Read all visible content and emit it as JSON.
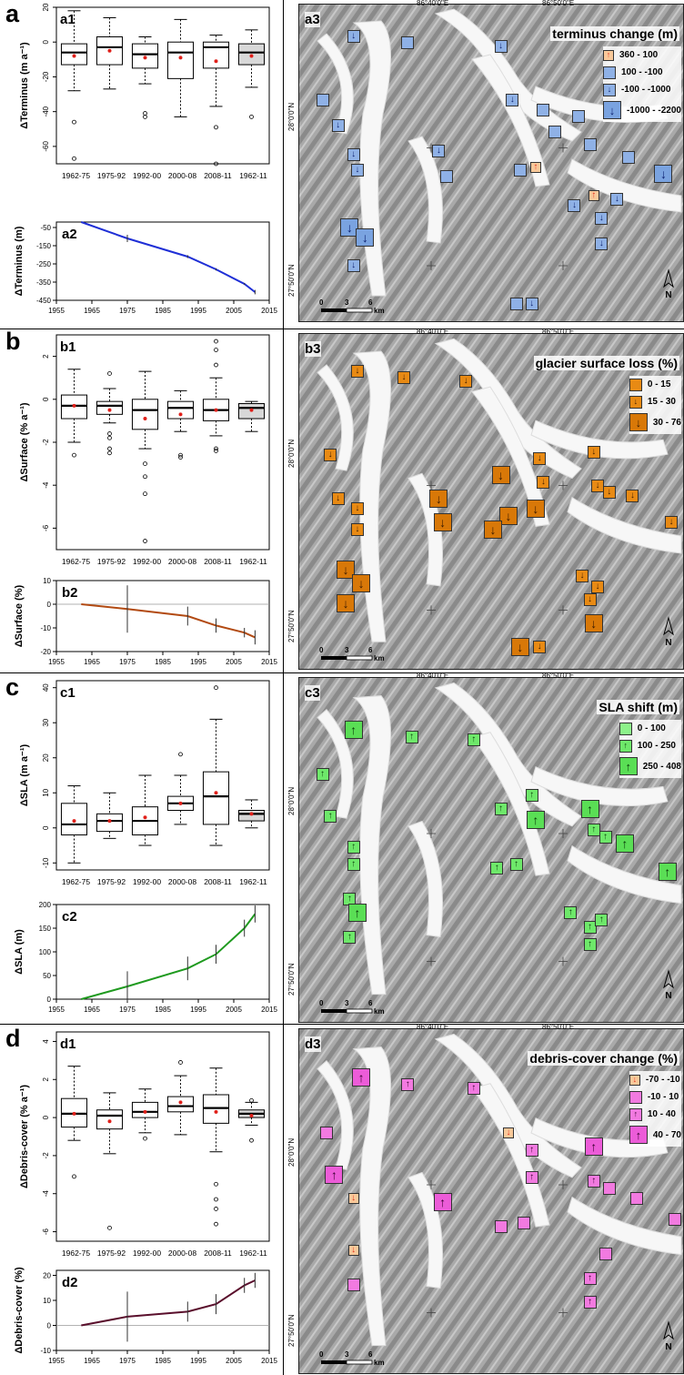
{
  "panels": [
    {
      "letter": "a",
      "box": {
        "label": "a1",
        "ylabel": "ΔTerminus (m a⁻¹)",
        "yticks": [
          20,
          0,
          -20,
          -40,
          -60
        ],
        "ylim": [
          -70,
          20
        ],
        "periods": [
          "1962-75",
          "1975-92",
          "1992-00",
          "2000-08",
          "2008-11",
          "1962-11"
        ],
        "stats": [
          {
            "min": -28,
            "q1": -13,
            "median": -6,
            "q3": -1,
            "max": 18,
            "mean": -8,
            "outliers": [
              -46,
              -67
            ]
          },
          {
            "min": -27,
            "q1": -13,
            "median": -3,
            "q3": 3,
            "max": 14,
            "mean": -5,
            "outliers": []
          },
          {
            "min": -24,
            "q1": -15,
            "median": -7,
            "q3": -1,
            "max": 3,
            "mean": -9,
            "outliers": [
              -41,
              -43
            ]
          },
          {
            "min": -43,
            "q1": -21,
            "median": -6,
            "q3": 0,
            "max": 13,
            "mean": -9,
            "outliers": []
          },
          {
            "min": -37,
            "q1": -15,
            "median": -3,
            "q3": 0,
            "max": 4,
            "mean": -11,
            "outliers": [
              -49,
              -70
            ]
          },
          {
            "min": -26,
            "q1": -13,
            "median": -6,
            "q3": -1,
            "max": 7,
            "mean": -8,
            "outliers": [
              -43
            ]
          }
        ]
      },
      "line": {
        "label": "a2",
        "ylabel": "ΔTerminus (m)",
        "yticks": [
          -50,
          -150,
          -250,
          -350,
          -450
        ],
        "ylim": [
          -450,
          -20
        ],
        "xticks": [
          1955,
          1965,
          1975,
          1985,
          1995,
          2005,
          2015
        ],
        "xlim": [
          1955,
          2015
        ],
        "color": "#1f2fd6",
        "x": [
          1962,
          1975,
          1992,
          2000,
          2008,
          2011
        ],
        "y": [
          -20,
          -110,
          -210,
          -280,
          -360,
          -405
        ],
        "err": [
          0,
          20,
          8,
          6,
          5,
          12
        ]
      },
      "map": {
        "label": "a3",
        "title": "terminus change (m)",
        "coord_top_left": "86°40'0\"E",
        "coord_top_right": "86°50'0\"E",
        "coord_left_top": "28°0'0\"N",
        "coord_left_bottom": "27°50'0\"N",
        "scale": [
          "0",
          "3",
          "6"
        ],
        "scale_unit": "km",
        "north": "N",
        "legend": [
          {
            "label": "360 - 100",
            "fill": "#f9c99a",
            "arrow": "↑",
            "arrow_color": "#e0301e",
            "size": 12
          },
          {
            "label": "100 - -100",
            "fill": "#8fb1e6",
            "arrow": "",
            "arrow_color": "#000",
            "size": 14
          },
          {
            "label": "-100 - -1000",
            "fill": "#8fb1e6",
            "arrow": "↓",
            "arrow_color": "#0a1f6e",
            "size": 14
          },
          {
            "label": "-1000 - -2200",
            "fill": "#7aa3e0",
            "arrow": "↓",
            "arrow_color": "#0a1f6e",
            "size": 20
          }
        ]
      }
    },
    {
      "letter": "b",
      "box": {
        "label": "b1",
        "ylabel": "ΔSurface (% a⁻¹)",
        "yticks": [
          2,
          0,
          -2,
          -4,
          -6
        ],
        "ylim": [
          -7,
          3
        ],
        "periods": [
          "1962-75",
          "1975-92",
          "1992-00",
          "2000-08",
          "2008-11",
          "1962-11"
        ],
        "stats": [
          {
            "min": -2.0,
            "q1": -0.9,
            "median": -0.3,
            "q3": 0.2,
            "max": 1.4,
            "mean": -0.3,
            "outliers": [
              -2.6
            ]
          },
          {
            "min": -1.1,
            "q1": -0.7,
            "median": -0.3,
            "q3": -0.1,
            "max": 0.5,
            "mean": -0.5,
            "outliers": [
              1.2,
              -1.6,
              -1.8,
              -2.3,
              -2.5
            ]
          },
          {
            "min": -2.3,
            "q1": -1.4,
            "median": -0.5,
            "q3": 0,
            "max": 1.3,
            "mean": -0.9,
            "outliers": [
              -3.0,
              -3.6,
              -4.4,
              -6.6
            ]
          },
          {
            "min": -1.5,
            "q1": -0.9,
            "median": -0.4,
            "q3": -0.1,
            "max": 0.4,
            "mean": -0.7,
            "outliers": [
              -2.6,
              -2.7
            ]
          },
          {
            "min": -1.7,
            "q1": -1.0,
            "median": -0.5,
            "q3": 0,
            "max": 1.0,
            "mean": -0.5,
            "outliers": [
              2.7,
              2.3,
              1.6,
              -2.3,
              -2.4
            ]
          },
          {
            "min": -1.5,
            "q1": -0.9,
            "median": -0.4,
            "q3": -0.2,
            "max": -0.1,
            "mean": -0.5,
            "outliers": []
          }
        ]
      },
      "line": {
        "label": "b2",
        "ylabel": "ΔSurface (%)",
        "yticks": [
          10,
          0,
          -10,
          -20
        ],
        "ylim": [
          -20,
          10
        ],
        "xticks": [
          1955,
          1965,
          1975,
          1985,
          1995,
          2005,
          2015
        ],
        "xlim": [
          1955,
          2015
        ],
        "color": "#b24a12",
        "x": [
          1962,
          1975,
          1992,
          2000,
          2008,
          2011
        ],
        "y": [
          0,
          -2,
          -5,
          -9,
          -12,
          -14
        ],
        "err": [
          0,
          10,
          4,
          3,
          2,
          3
        ]
      },
      "map": {
        "label": "b3",
        "title": "glacier surface loss (%)",
        "coord_top_left": "86°40'0\"E",
        "coord_top_right": "86°50'0\"E",
        "coord_left_top": "28°0'0\"N",
        "coord_left_bottom": "27°50'0\"N",
        "scale": [
          "0",
          "3",
          "6"
        ],
        "scale_unit": "km",
        "north": "N",
        "legend": [
          {
            "label": "0 - 15",
            "fill": "#e88a14",
            "arrow": "",
            "arrow_color": "#000",
            "size": 14
          },
          {
            "label": "15 - 30",
            "fill": "#e88a14",
            "arrow": "↓",
            "arrow_color": "#3a1a00",
            "size": 14
          },
          {
            "label": "30 - 76",
            "fill": "#d87808",
            "arrow": "↓",
            "arrow_color": "#3a1a00",
            "size": 20
          }
        ]
      }
    },
    {
      "letter": "c",
      "box": {
        "label": "c1",
        "ylabel": "ΔSLA (m a⁻¹)",
        "yticks": [
          40,
          30,
          20,
          10,
          0,
          -10
        ],
        "ylim": [
          -12,
          42
        ],
        "periods": [
          "1962-75",
          "1975-92",
          "1992-00",
          "2000-08",
          "2008-11",
          "1962-11"
        ],
        "stats": [
          {
            "min": -10,
            "q1": -2,
            "median": 1,
            "q3": 7,
            "max": 12,
            "mean": 2,
            "outliers": []
          },
          {
            "min": -3,
            "q1": -1,
            "median": 2,
            "q3": 4,
            "max": 10,
            "mean": 2,
            "outliers": []
          },
          {
            "min": -5,
            "q1": -2,
            "median": 2,
            "q3": 6,
            "max": 15,
            "mean": 3,
            "outliers": []
          },
          {
            "min": 1,
            "q1": 5,
            "median": 7,
            "q3": 9,
            "max": 15,
            "mean": 7,
            "outliers": [
              21
            ]
          },
          {
            "min": -5,
            "q1": 1,
            "median": 9,
            "q3": 16,
            "max": 31,
            "mean": 10,
            "outliers": [
              40
            ]
          },
          {
            "min": 0,
            "q1": 2,
            "median": 4,
            "q3": 5,
            "max": 8,
            "mean": 4,
            "outliers": []
          }
        ]
      },
      "line": {
        "label": "c2",
        "ylabel": "ΔSLA (m)",
        "yticks": [
          200,
          150,
          100,
          50,
          0
        ],
        "ylim": [
          0,
          200
        ],
        "xticks": [
          1955,
          1965,
          1975,
          1985,
          1995,
          2005,
          2015
        ],
        "xlim": [
          1955,
          2015
        ],
        "color": "#1f9a1f",
        "x": [
          1962,
          1975,
          1992,
          2000,
          2008,
          2011
        ],
        "y": [
          0,
          27,
          65,
          95,
          150,
          180
        ],
        "err": [
          0,
          32,
          25,
          20,
          18,
          18
        ]
      },
      "map": {
        "label": "c3",
        "title": "SLA shift (m)",
        "coord_top_left": "86°40'0\"E",
        "coord_top_right": "86°50'0\"E",
        "coord_left_top": "28°0'0\"N",
        "coord_left_bottom": "27°50'0\"N",
        "scale": [
          "0",
          "3",
          "6"
        ],
        "scale_unit": "km",
        "north": "N",
        "legend": [
          {
            "label": "0 - 100",
            "fill": "#8df28a",
            "arrow": "",
            "arrow_color": "#000",
            "size": 14
          },
          {
            "label": "100 - 250",
            "fill": "#6ee86a",
            "arrow": "↑",
            "arrow_color": "#0a3a0a",
            "size": 14
          },
          {
            "label": "250 - 408",
            "fill": "#5ade55",
            "arrow": "↑",
            "arrow_color": "#0a3a0a",
            "size": 20
          }
        ]
      }
    },
    {
      "letter": "d",
      "box": {
        "label": "d1",
        "ylabel": "ΔDebris-cover (% a⁻¹)",
        "yticks": [
          4,
          2,
          0,
          -2,
          -4,
          -6
        ],
        "ylim": [
          -6.5,
          4.5
        ],
        "periods": [
          "1962-75",
          "1975-92",
          "1992-00",
          "2000-08",
          "2008-11",
          "1962-11"
        ],
        "stats": [
          {
            "min": -1.2,
            "q1": -0.5,
            "median": 0.2,
            "q3": 1.0,
            "max": 2.7,
            "mean": 0.2,
            "outliers": [
              -3.1
            ]
          },
          {
            "min": -1.9,
            "q1": -0.6,
            "median": 0.1,
            "q3": 0.4,
            "max": 1.3,
            "mean": -0.2,
            "outliers": [
              -5.8
            ]
          },
          {
            "min": -0.8,
            "q1": 0,
            "median": 0.3,
            "q3": 0.8,
            "max": 1.5,
            "mean": 0.3,
            "outliers": [
              -1.1
            ]
          },
          {
            "min": -0.9,
            "q1": 0.3,
            "median": 0.6,
            "q3": 1.1,
            "max": 2.2,
            "mean": 0.8,
            "outliers": [
              2.9
            ]
          },
          {
            "min": -1.8,
            "q1": -0.3,
            "median": 0.5,
            "q3": 1.2,
            "max": 2.6,
            "mean": 0.3,
            "outliers": [
              -3.5,
              -4.3,
              -4.8,
              -5.6
            ]
          },
          {
            "min": -0.4,
            "q1": 0,
            "median": 0.2,
            "q3": 0.4,
            "max": 0.8,
            "mean": 0.1,
            "outliers": [
              0.9,
              -1.2
            ]
          }
        ]
      },
      "line": {
        "label": "d2",
        "ylabel": "ΔDebris-cover (%)",
        "yticks": [
          20,
          10,
          0,
          -10
        ],
        "ylim": [
          -10,
          22
        ],
        "xticks": [
          1955,
          1965,
          1975,
          1985,
          1995,
          2005,
          2015
        ],
        "xlim": [
          1955,
          2015
        ],
        "color": "#5a0f2c",
        "x": [
          1962,
          1975,
          1992,
          2000,
          2008,
          2011
        ],
        "y": [
          0,
          3.5,
          5.5,
          8.5,
          16,
          18
        ],
        "err": [
          0,
          10,
          4,
          4,
          3,
          3
        ]
      },
      "map": {
        "label": "d3",
        "title": "debris-cover change (%)",
        "coord_top_left": "86°40'0\"E",
        "coord_top_right": "86°50'0\"E",
        "coord_left_top": "28°0'0\"N",
        "coord_left_bottom": "27°50'0\"N",
        "scale": [
          "0",
          "3",
          "6"
        ],
        "scale_unit": "km",
        "north": "N",
        "legend": [
          {
            "label": "-70 - -10",
            "fill": "#f9c99a",
            "arrow": "↓",
            "arrow_color": "#e0301e",
            "size": 12
          },
          {
            "label": "-10 - 10",
            "fill": "#f27ae0",
            "arrow": "",
            "arrow_color": "#000",
            "size": 14
          },
          {
            "label": "10 - 40",
            "fill": "#f27ae0",
            "arrow": "↑",
            "arrow_color": "#3a0030",
            "size": 14
          },
          {
            "label": "40 - 70",
            "fill": "#ec5cd8",
            "arrow": "↑",
            "arrow_color": "#3a0030",
            "size": 20
          }
        ]
      }
    }
  ],
  "chart_data": [
    {
      "type": "box",
      "title": "",
      "ylabel": "ΔTerminus (m a⁻¹)",
      "categories": [
        "1962-75",
        "1975-92",
        "1992-00",
        "2000-08",
        "2008-11",
        "1962-11"
      ],
      "medians": [
        -6,
        -3,
        -7,
        -6,
        -3,
        -6
      ],
      "means": [
        -8,
        -5,
        -9,
        -9,
        -11,
        -8
      ],
      "ylim": [
        -70,
        20
      ]
    },
    {
      "type": "line",
      "title": "",
      "ylabel": "ΔTerminus (m)",
      "x": [
        1962,
        1975,
        1992,
        2000,
        2008,
        2011
      ],
      "y": [
        -20,
        -110,
        -210,
        -280,
        -360,
        -405
      ],
      "xlim": [
        1955,
        2015
      ],
      "ylim": [
        -450,
        -20
      ]
    },
    {
      "type": "box",
      "title": "",
      "ylabel": "ΔSurface (% a⁻¹)",
      "categories": [
        "1962-75",
        "1975-92",
        "1992-00",
        "2000-08",
        "2008-11",
        "1962-11"
      ],
      "medians": [
        -0.3,
        -0.3,
        -0.5,
        -0.4,
        -0.5,
        -0.4
      ],
      "means": [
        -0.3,
        -0.5,
        -0.9,
        -0.7,
        -0.5,
        -0.5
      ],
      "ylim": [
        -7,
        3
      ]
    },
    {
      "type": "line",
      "title": "",
      "ylabel": "ΔSurface (%)",
      "x": [
        1962,
        1975,
        1992,
        2000,
        2008,
        2011
      ],
      "y": [
        0,
        -2,
        -5,
        -9,
        -12,
        -14
      ],
      "xlim": [
        1955,
        2015
      ],
      "ylim": [
        -20,
        10
      ]
    },
    {
      "type": "box",
      "title": "",
      "ylabel": "ΔSLA (m a⁻¹)",
      "categories": [
        "1962-75",
        "1975-92",
        "1992-00",
        "2000-08",
        "2008-11",
        "1962-11"
      ],
      "medians": [
        1,
        2,
        2,
        7,
        9,
        4
      ],
      "means": [
        2,
        2,
        3,
        7,
        10,
        4
      ],
      "ylim": [
        -12,
        42
      ]
    },
    {
      "type": "line",
      "title": "",
      "ylabel": "ΔSLA (m)",
      "x": [
        1962,
        1975,
        1992,
        2000,
        2008,
        2011
      ],
      "y": [
        0,
        27,
        65,
        95,
        150,
        180
      ],
      "xlim": [
        1955,
        2015
      ],
      "ylim": [
        0,
        200
      ]
    },
    {
      "type": "box",
      "title": "",
      "ylabel": "ΔDebris-cover (% a⁻¹)",
      "categories": [
        "1962-75",
        "1975-92",
        "1992-00",
        "2000-08",
        "2008-11",
        "1962-11"
      ],
      "medians": [
        0.2,
        0.1,
        0.3,
        0.6,
        0.5,
        0.2
      ],
      "means": [
        0.2,
        -0.2,
        0.3,
        0.8,
        0.3,
        0.1
      ],
      "ylim": [
        -6.5,
        4.5
      ]
    },
    {
      "type": "line",
      "title": "",
      "ylabel": "ΔDebris-cover (%)",
      "x": [
        1962,
        1975,
        1992,
        2000,
        2008,
        2011
      ],
      "y": [
        0,
        3.5,
        5.5,
        8.5,
        16,
        18
      ],
      "xlim": [
        1955,
        2015
      ],
      "ylim": [
        -10,
        22
      ]
    }
  ]
}
